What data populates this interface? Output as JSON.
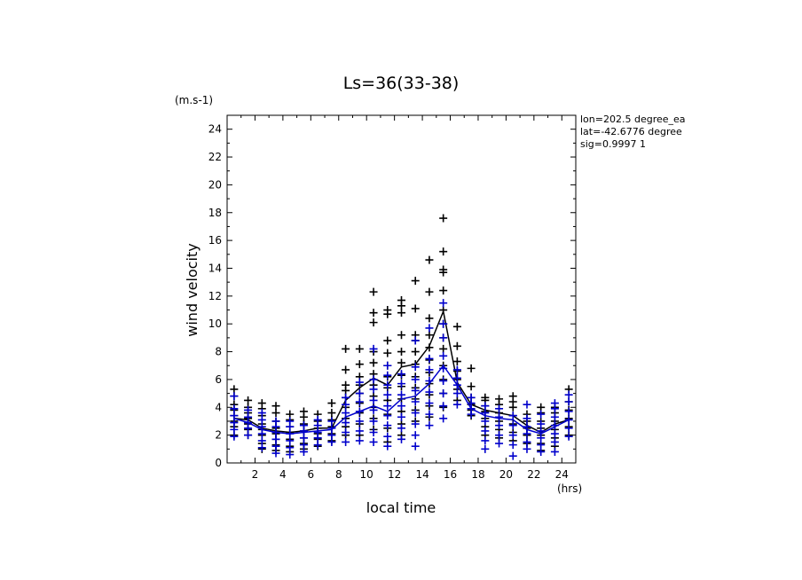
{
  "chart_data": {
    "type": "scatter",
    "title": "Ls=36(33-38)",
    "xlabel": "local time",
    "ylabel": "wind velocity",
    "x_unit": "(hrs)",
    "y_unit": "(m.s-1)",
    "xlim": [
      0,
      25
    ],
    "ylim": [
      0,
      25
    ],
    "xticks": [
      2,
      4,
      6,
      8,
      10,
      12,
      14,
      16,
      18,
      20,
      22,
      24
    ],
    "yticks": [
      0,
      2,
      4,
      6,
      8,
      10,
      12,
      14,
      16,
      18,
      20,
      22,
      24
    ],
    "grid": false,
    "info_lines": [
      "lon=202.5 degree_ea",
      "lat=-42.6776 degree",
      "sig=0.9997 1"
    ],
    "series": [
      {
        "color": "#000000",
        "scatter": [
          [
            0.5,
            [
              2.0,
              2.6,
              3.0,
              3.4,
              3.8,
              4.2,
              4.8,
              5.3
            ]
          ],
          [
            1.5,
            [
              2.0,
              2.4,
              2.8,
              3.2,
              3.6,
              4.0,
              4.5
            ]
          ],
          [
            2.5,
            [
              1.0,
              1.4,
              2.0,
              2.4,
              2.8,
              3.4,
              3.9,
              4.3
            ]
          ],
          [
            3.5,
            [
              0.9,
              1.3,
              1.7,
              2.1,
              2.5,
              3.0,
              3.6,
              4.1
            ]
          ],
          [
            4.5,
            [
              0.8,
              1.2,
              1.7,
              2.2,
              2.6,
              3.1,
              3.5
            ]
          ],
          [
            5.5,
            [
              1.0,
              1.4,
              1.8,
              2.3,
              2.8,
              3.3,
              3.7
            ]
          ],
          [
            6.5,
            [
              1.2,
              1.7,
              2.1,
              2.5,
              3.0,
              3.5
            ]
          ],
          [
            7.5,
            [
              1.6,
              2.1,
              2.6,
              3.1,
              3.6,
              4.3
            ]
          ],
          [
            8.5,
            [
              2.0,
              2.6,
              3.2,
              4.0,
              4.7,
              5.2,
              5.6,
              6.7,
              8.2
            ]
          ],
          [
            9.5,
            [
              2.0,
              2.8,
              3.6,
              4.3,
              5.0,
              5.6,
              6.2,
              7.1,
              8.2
            ]
          ],
          [
            10.5,
            [
              2.4,
              3.2,
              4.0,
              4.8,
              5.6,
              6.4,
              7.2,
              8.0,
              10.1,
              10.8,
              12.3
            ]
          ],
          [
            11.5,
            [
              1.5,
              2.5,
              3.5,
              4.5,
              5.4,
              6.2,
              7.0,
              7.9,
              8.8,
              10.7,
              11.0
            ]
          ],
          [
            12.5,
            [
              2.0,
              2.8,
              3.7,
              4.6,
              5.5,
              6.3,
              7.2,
              8.0,
              9.2,
              10.8,
              11.3,
              11.7
            ]
          ],
          [
            13.5,
            [
              3.0,
              3.8,
              4.6,
              5.4,
              6.2,
              7.1,
              8.0,
              8.8,
              9.2,
              11.1,
              13.1
            ]
          ],
          [
            14.5,
            [
              3.3,
              4.1,
              4.9,
              5.7,
              6.5,
              7.4,
              8.3,
              9.2,
              10.4,
              12.3,
              14.6
            ]
          ],
          [
            15.5,
            [
              4.0,
              5.0,
              6.0,
              7.0,
              8.2,
              9.0,
              10.0,
              11.0,
              12.4,
              13.7,
              13.9,
              15.2,
              17.6
            ]
          ],
          [
            16.5,
            [
              4.5,
              5.3,
              6.0,
              6.6,
              7.3,
              8.4,
              9.8
            ]
          ],
          [
            17.5,
            [
              3.4,
              3.8,
              4.2,
              4.7,
              5.5,
              6.8
            ]
          ],
          [
            18.5,
            [
              2.0,
              2.6,
              3.2,
              3.7,
              4.1,
              4.5,
              4.7
            ]
          ],
          [
            19.5,
            [
              1.8,
              2.4,
              3.0,
              3.6,
              4.2,
              4.6
            ]
          ],
          [
            20.5,
            [
              1.6,
              2.2,
              2.8,
              3.4,
              4.0,
              4.4,
              4.8
            ]
          ],
          [
            21.5,
            [
              1.4,
              2.0,
              2.5,
              3.0,
              3.5
            ]
          ],
          [
            22.5,
            [
              0.9,
              1.4,
              2.0,
              2.5,
              3.0,
              3.6,
              4.0
            ]
          ],
          [
            23.5,
            [
              1.2,
              1.8,
              2.4,
              3.0,
              3.6,
              4.0
            ]
          ],
          [
            24.5,
            [
              2.0,
              2.6,
              3.2,
              3.8,
              4.4,
              5.3
            ]
          ]
        ],
        "line": [
          3.2,
          3.1,
          2.5,
          2.3,
          2.2,
          2.3,
          2.5,
          2.5,
          4.5,
          5.4,
          6.1,
          5.6,
          6.9,
          7.1,
          8.4,
          10.9,
          5.8,
          4.2,
          3.8,
          3.6,
          3.4,
          2.7,
          2.2,
          2.8,
          3.1
        ]
      },
      {
        "color": "#0000cc",
        "scatter": [
          [
            0.5,
            [
              1.9,
              2.4,
              2.9,
              3.4,
              3.9,
              4.8
            ]
          ],
          [
            1.5,
            [
              2.0,
              2.5,
              2.9,
              3.3,
              3.8
            ]
          ],
          [
            2.5,
            [
              1.1,
              1.6,
              2.1,
              2.6,
              3.1,
              3.6
            ]
          ],
          [
            3.5,
            [
              0.7,
              1.2,
              1.7,
              2.2,
              2.6,
              3.0
            ]
          ],
          [
            4.5,
            [
              0.6,
              1.1,
              1.6,
              2.1,
              2.6,
              3.0
            ]
          ],
          [
            5.5,
            [
              0.8,
              1.3,
              1.8,
              2.3,
              2.7
            ]
          ],
          [
            6.5,
            [
              1.3,
              1.8,
              2.2,
              2.7,
              3.1
            ]
          ],
          [
            7.5,
            [
              1.5,
              2.0,
              2.5,
              3.0
            ]
          ],
          [
            8.5,
            [
              1.5,
              2.2,
              2.9,
              3.6,
              4.2,
              4.7
            ]
          ],
          [
            9.5,
            [
              1.6,
              2.3,
              3.0,
              3.7,
              4.4,
              5.0,
              5.8
            ]
          ],
          [
            10.5,
            [
              1.5,
              2.2,
              3.0,
              3.8,
              4.5,
              5.3,
              6.0,
              8.2
            ]
          ],
          [
            11.5,
            [
              1.2,
              1.9,
              2.7,
              3.4,
              4.1,
              4.9,
              5.6,
              6.3,
              7.0
            ]
          ],
          [
            12.5,
            [
              1.7,
              2.5,
              3.3,
              4.1,
              4.9,
              5.7,
              6.4
            ]
          ],
          [
            13.5,
            [
              1.2,
              2.0,
              2.8,
              3.6,
              4.4,
              5.2,
              6.0,
              6.9,
              8.8
            ]
          ],
          [
            14.5,
            [
              2.7,
              3.5,
              4.3,
              5.1,
              5.9,
              6.7,
              7.5,
              9.7
            ]
          ],
          [
            15.5,
            [
              3.2,
              4.1,
              5.0,
              5.9,
              6.8,
              7.7,
              9.0,
              10.0,
              11.5
            ]
          ],
          [
            16.5,
            [
              4.2,
              5.0,
              5.6,
              6.1,
              6.7
            ]
          ],
          [
            17.5,
            [
              3.5,
              3.9,
              4.3,
              4.7
            ]
          ],
          [
            18.5,
            [
              1.0,
              1.6,
              2.3,
              3.0,
              3.6,
              4.1
            ]
          ],
          [
            19.5,
            [
              1.4,
              2.0,
              2.7,
              3.3,
              3.9
            ]
          ],
          [
            20.5,
            [
              0.5,
              1.3,
              2.0,
              2.7,
              3.4
            ]
          ],
          [
            21.5,
            [
              1.0,
              1.5,
              2.1,
              2.6,
              3.2,
              4.2
            ]
          ],
          [
            22.5,
            [
              0.8,
              1.3,
              1.8,
              2.3,
              2.8,
              3.5
            ]
          ],
          [
            23.5,
            [
              0.8,
              1.5,
              2.1,
              2.7,
              3.3,
              3.9,
              4.3
            ]
          ],
          [
            24.5,
            [
              1.9,
              2.5,
              3.1,
              3.7,
              4.4,
              4.9
            ]
          ]
        ],
        "line": [
          3.2,
          2.9,
          2.4,
          2.2,
          2.1,
          2.2,
          2.3,
          2.4,
          3.3,
          3.7,
          4.1,
          3.7,
          4.6,
          4.8,
          5.7,
          7.0,
          5.6,
          3.9,
          3.4,
          3.2,
          3.1,
          2.4,
          2.1,
          2.6,
          3.1
        ]
      }
    ]
  }
}
